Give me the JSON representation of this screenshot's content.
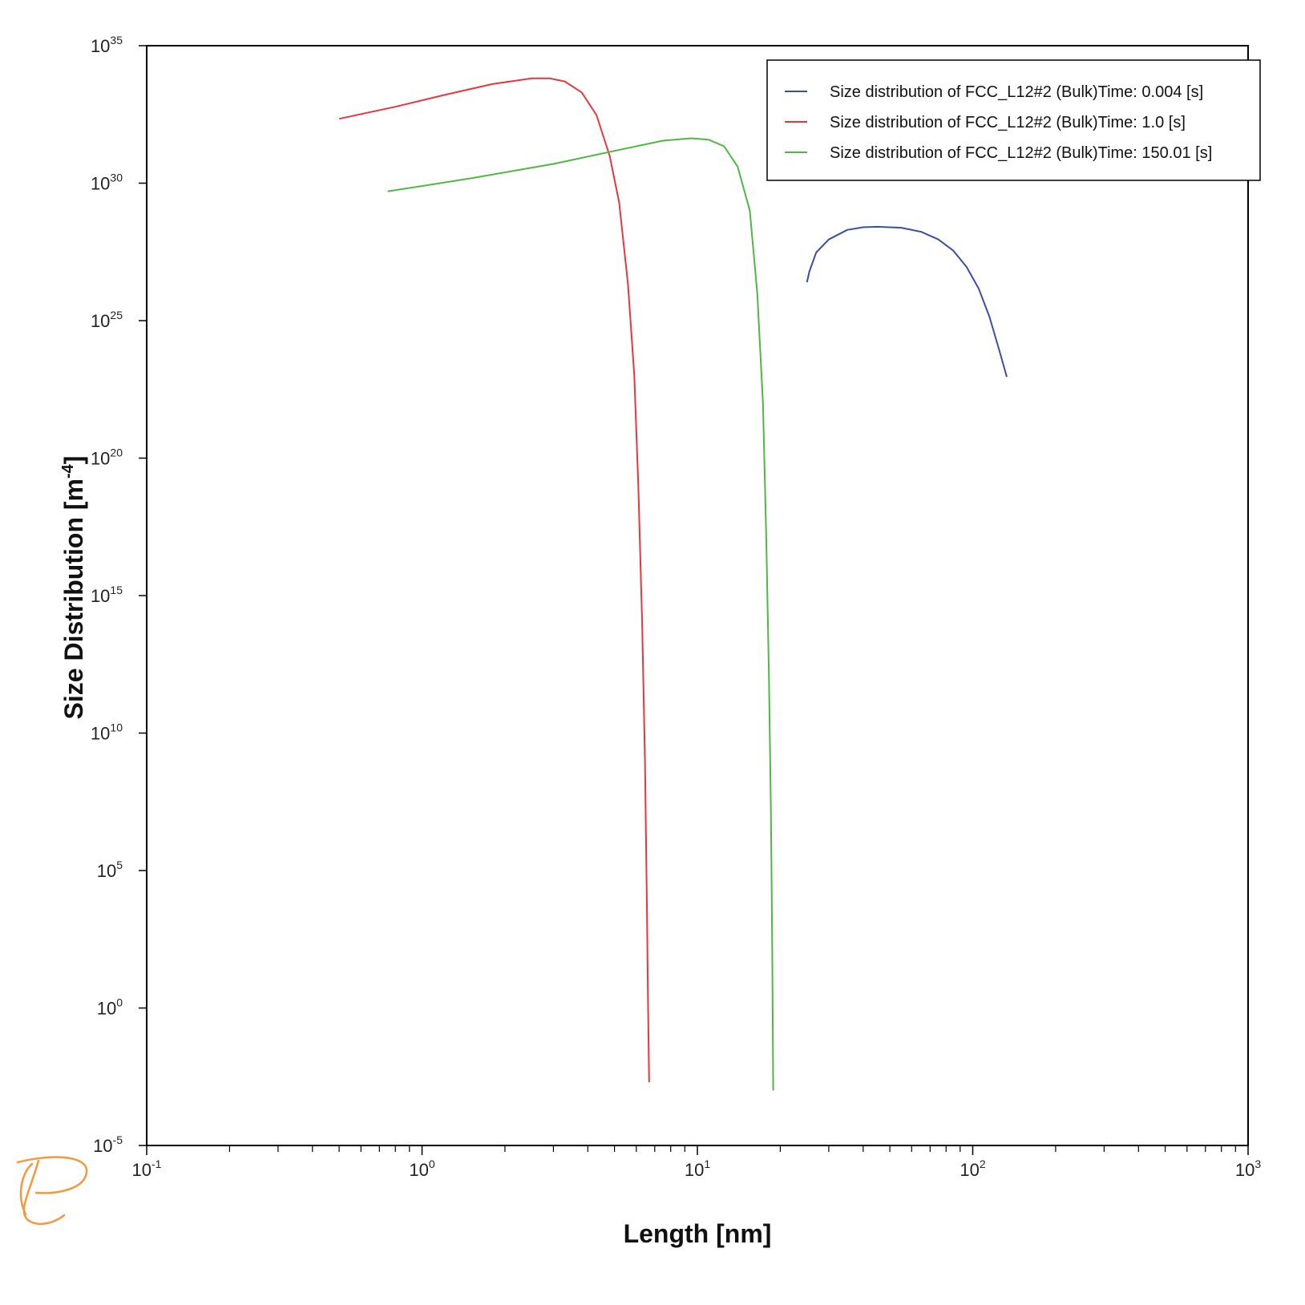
{
  "chart_data": {
    "type": "line",
    "xlabel": "Length [nm]",
    "ylabel": "Size Distribution [m",
    "ylabel_sup": "-4",
    "ylabel_tail": "]",
    "x_scale": "log",
    "y_scale": "log",
    "xlim": [
      0.1,
      1000
    ],
    "ylim": [
      1e-05,
      1e+35
    ],
    "grid": false,
    "legend_position": "top-right",
    "x_ticks": [
      {
        "base": "10",
        "exp": "-1",
        "value": 0.1
      },
      {
        "base": "10",
        "exp": "0",
        "value": 1
      },
      {
        "base": "10",
        "exp": "1",
        "value": 10
      },
      {
        "base": "10",
        "exp": "2",
        "value": 100
      },
      {
        "base": "10",
        "exp": "3",
        "value": 1000
      }
    ],
    "y_ticks": [
      {
        "base": "10",
        "exp": "35",
        "value": 1e+35
      },
      {
        "base": "10",
        "exp": "30",
        "value": 1e+30
      },
      {
        "base": "10",
        "exp": "25",
        "value": 1e+25
      },
      {
        "base": "10",
        "exp": "20",
        "value": 1e+20
      },
      {
        "base": "10",
        "exp": "15",
        "value": 1000000000000000.0
      },
      {
        "base": "10",
        "exp": "10",
        "value": 10000000000.0
      },
      {
        "base": "10",
        "exp": "5",
        "value": 100000.0
      },
      {
        "base": "10",
        "exp": "0",
        "value": 1
      },
      {
        "base": "10",
        "exp": "-5",
        "value": 1e-05
      }
    ],
    "series": [
      {
        "name": "Size distribution of FCC_L12#2 (Bulk)Time: 0.004  [s]",
        "color": "#3a4fa3",
        "points": [
          [
            25.0,
            2.5e+26
          ],
          [
            25.5,
            6e+26
          ],
          [
            27,
            3e+27
          ],
          [
            30,
            9e+27
          ],
          [
            35,
            2e+28
          ],
          [
            40,
            2.5e+28
          ],
          [
            45,
            2.6e+28
          ],
          [
            55,
            2.4e+28
          ],
          [
            65,
            1.7e+28
          ],
          [
            75,
            9e+27
          ],
          [
            85,
            3.5e+27
          ],
          [
            95,
            9e+26
          ],
          [
            105,
            1.5e+26
          ],
          [
            115,
            1.4e+25
          ],
          [
            125,
            8e+23
          ],
          [
            133,
            9e+22
          ]
        ]
      },
      {
        "name": "Size distribution of FCC_L12#2 (Bulk)Time: 1.0  [s]",
        "color": "#e8363f",
        "points": [
          [
            0.5,
            2.2e+32
          ],
          [
            0.8,
            6e+32
          ],
          [
            1.2,
            1.6e+33
          ],
          [
            1.8,
            4e+33
          ],
          [
            2.5,
            6.5e+33
          ],
          [
            2.9,
            6.5e+33
          ],
          [
            3.3,
            5e+33
          ],
          [
            3.8,
            2e+33
          ],
          [
            4.3,
            3e+32
          ],
          [
            4.8,
            1e+31
          ],
          [
            5.2,
            2e+29
          ],
          [
            5.6,
            2e+26
          ],
          [
            5.9,
            1e+23
          ],
          [
            6.1,
            1e+19
          ],
          [
            6.3,
            100000000000000.0
          ],
          [
            6.45,
            1000000000.0
          ],
          [
            6.55,
            10000.0
          ],
          [
            6.62,
            1
          ],
          [
            6.68,
            0.002
          ]
        ]
      },
      {
        "name": "Size distribution of FCC_L12#2 (Bulk)Time: 150.01  [s]",
        "color": "#4db843",
        "points": [
          [
            0.75,
            5e+29
          ],
          [
            1.5,
            1.5e+30
          ],
          [
            3,
            5e+30
          ],
          [
            5,
            1.5e+31
          ],
          [
            7.5,
            3.5e+31
          ],
          [
            9.5,
            4.3e+31
          ],
          [
            11,
            3.8e+31
          ],
          [
            12.5,
            2.2e+31
          ],
          [
            14,
            4e+30
          ],
          [
            15.5,
            1e+29
          ],
          [
            16.5,
            1e+26
          ],
          [
            17.3,
            1e+22
          ],
          [
            17.8,
            1e+17
          ],
          [
            18.2,
            1000000000000.0
          ],
          [
            18.5,
            10000000.0
          ],
          [
            18.7,
            100.0
          ],
          [
            18.85,
            0.001
          ]
        ]
      }
    ]
  }
}
